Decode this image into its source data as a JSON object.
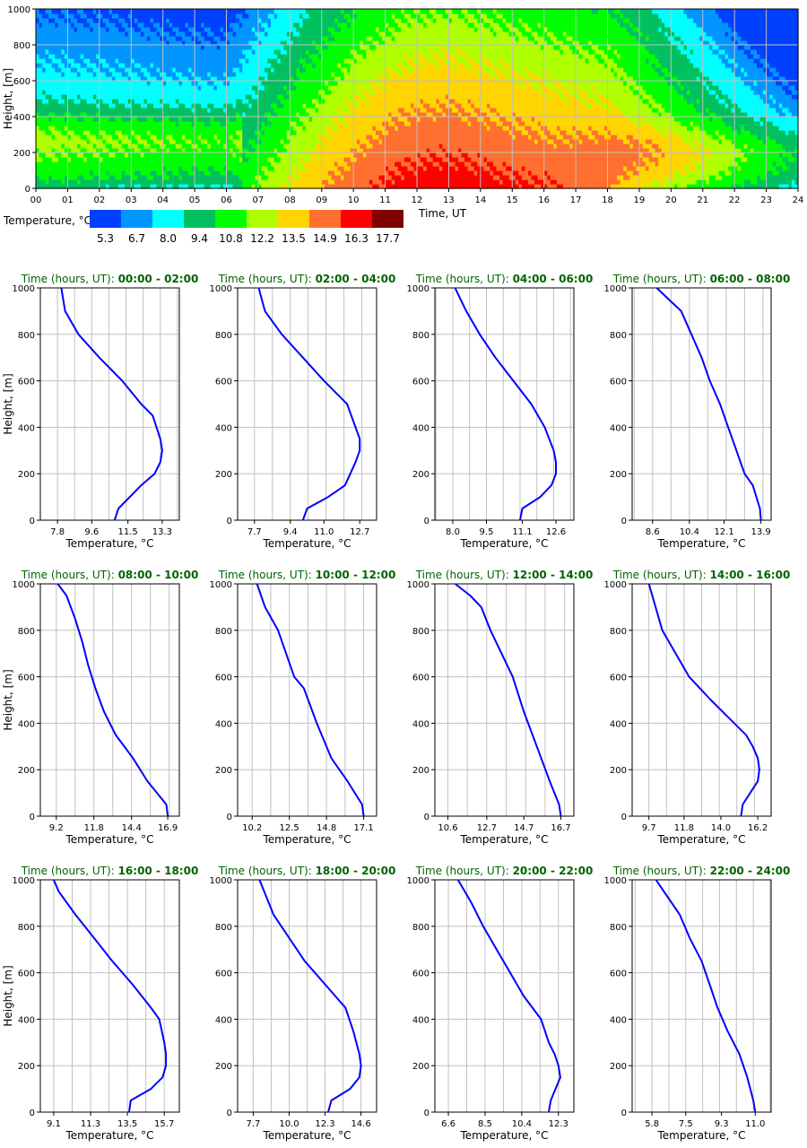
{
  "chart_data": [
    {
      "type": "heatmap",
      "title": "",
      "xlabel": "Time, UT",
      "ylabel": "Height, [m]",
      "x_ticks": [
        "00",
        "01",
        "02",
        "03",
        "04",
        "05",
        "06",
        "07",
        "08",
        "09",
        "10",
        "11",
        "12",
        "13",
        "14",
        "15",
        "16",
        "17",
        "18",
        "19",
        "20",
        "21",
        "22",
        "23",
        "24"
      ],
      "y_ticks": [
        "0",
        "200",
        "400",
        "600",
        "800",
        "1000"
      ],
      "xlim": [
        0,
        24
      ],
      "ylim": [
        0,
        1000
      ],
      "grid": true,
      "colorbar": {
        "label": "Temperature, °C",
        "levels": [
          "5.3",
          "6.7",
          "8.0",
          "9.4",
          "10.8",
          "12.2",
          "13.5",
          "14.9",
          "16.3",
          "17.7"
        ],
        "colors": [
          "#0040ff",
          "#0095ff",
          "#00ffff",
          "#00c060",
          "#00ff00",
          "#b0ff00",
          "#ffd500",
          "#ff7030",
          "#ff0000",
          "#800000"
        ]
      }
    },
    {
      "type": "line",
      "title_prefix": "Time (hours, UT): ",
      "title_range": "00:00 - 02:00",
      "xlabel": "Temperature, °C",
      "ylabel": "Height, [m]",
      "xlim": [
        6.9,
        14.2
      ],
      "x_ticks": [
        "7.8",
        "9.6",
        "11.5",
        "13.3"
      ],
      "y_ticks": [
        "0",
        "200",
        "400",
        "600",
        "800",
        "1000"
      ],
      "series": [
        {
          "name": "profile",
          "color": "#0000ff",
          "x": [
            10.8,
            11.0,
            12.2,
            12.9,
            13.2,
            13.3,
            13.2,
            12.8,
            12.2,
            11.2,
            10.0,
            8.9,
            8.2,
            8.0
          ],
          "y": [
            0,
            50,
            150,
            200,
            250,
            300,
            350,
            450,
            500,
            600,
            700,
            800,
            900,
            1000
          ]
        }
      ]
    },
    {
      "type": "line",
      "title_prefix": "Time (hours, UT): ",
      "title_range": "02:00 - 04:00",
      "xlabel": "Temperature, °C",
      "ylabel": "Height, [m]",
      "xlim": [
        6.9,
        13.5
      ],
      "x_ticks": [
        "7.7",
        "9.4",
        "11.0",
        "12.7"
      ],
      "y_ticks": [
        "0",
        "200",
        "400",
        "600",
        "800",
        "1000"
      ],
      "series": [
        {
          "name": "profile",
          "color": "#0000ff",
          "x": [
            10.0,
            10.2,
            11.2,
            12.0,
            12.5,
            12.7,
            12.7,
            12.5,
            12.1,
            11.0,
            10.0,
            9.0,
            8.2,
            7.9
          ],
          "y": [
            0,
            50,
            100,
            150,
            250,
            300,
            350,
            400,
            500,
            600,
            700,
            800,
            900,
            1000
          ]
        }
      ]
    },
    {
      "type": "line",
      "title_prefix": "Time (hours, UT): ",
      "title_range": "04:00 - 06:00",
      "xlabel": "Temperature, °C",
      "ylabel": "Height, [m]",
      "xlim": [
        7.2,
        13.4
      ],
      "x_ticks": [
        "8.0",
        "9.5",
        "11.1",
        "12.6"
      ],
      "y_ticks": [
        "0",
        "200",
        "400",
        "600",
        "800",
        "1000"
      ],
      "series": [
        {
          "name": "profile",
          "color": "#0000ff",
          "x": [
            11.0,
            11.1,
            11.9,
            12.4,
            12.6,
            12.6,
            12.5,
            12.1,
            11.5,
            10.7,
            9.9,
            9.2,
            8.6,
            8.1
          ],
          "y": [
            0,
            50,
            100,
            150,
            200,
            250,
            300,
            400,
            500,
            600,
            700,
            800,
            900,
            1000
          ]
        }
      ]
    },
    {
      "type": "line",
      "title_prefix": "Time (hours, UT): ",
      "title_range": "06:00 - 08:00",
      "xlabel": "Temperature, °C",
      "ylabel": "Height, [m]",
      "xlim": [
        7.6,
        14.4
      ],
      "x_ticks": [
        "8.6",
        "10.4",
        "12.1",
        "13.9"
      ],
      "y_ticks": [
        "0",
        "200",
        "400",
        "600",
        "800",
        "1000"
      ],
      "series": [
        {
          "name": "profile",
          "color": "#0000ff",
          "x": [
            13.9,
            13.85,
            13.5,
            13.1,
            12.7,
            12.3,
            11.9,
            11.4,
            11.0,
            10.5,
            10.0,
            9.4,
            8.8
          ],
          "y": [
            0,
            50,
            150,
            200,
            300,
            400,
            500,
            600,
            700,
            800,
            900,
            950,
            1000
          ]
        }
      ]
    },
    {
      "type": "line",
      "title_prefix": "Time (hours, UT): ",
      "title_range": "08:00 - 10:00",
      "xlabel": "Temperature, °C",
      "ylabel": "Height, [m]",
      "xlim": [
        8.1,
        17.7
      ],
      "x_ticks": [
        "9.2",
        "11.8",
        "14.4",
        "16.9"
      ],
      "y_ticks": [
        "0",
        "200",
        "400",
        "600",
        "800",
        "1000"
      ],
      "series": [
        {
          "name": "profile",
          "color": "#0000ff",
          "x": [
            16.9,
            16.8,
            15.5,
            14.5,
            13.3,
            12.5,
            11.9,
            11.4,
            11.0,
            10.5,
            9.9,
            9.3
          ],
          "y": [
            0,
            50,
            150,
            250,
            350,
            450,
            550,
            650,
            750,
            850,
            950,
            1000
          ]
        }
      ]
    },
    {
      "type": "line",
      "title_prefix": "Time (hours, UT): ",
      "title_range": "10:00 - 12:00",
      "xlabel": "Temperature, °C",
      "ylabel": "Height, [m]",
      "xlim": [
        9.3,
        17.9
      ],
      "x_ticks": [
        "10.2",
        "12.5",
        "14.8",
        "17.1"
      ],
      "y_ticks": [
        "0",
        "200",
        "400",
        "600",
        "800",
        "1000"
      ],
      "series": [
        {
          "name": "profile",
          "color": "#0000ff",
          "x": [
            17.1,
            17.0,
            16.1,
            15.1,
            14.2,
            13.4,
            12.8,
            12.3,
            11.8,
            11.0,
            10.5
          ],
          "y": [
            0,
            50,
            150,
            250,
            400,
            550,
            600,
            700,
            800,
            900,
            1000
          ]
        }
      ]
    },
    {
      "type": "line",
      "title_prefix": "Time (hours, UT): ",
      "title_range": "12:00 - 14:00",
      "xlabel": "Temperature, °C",
      "ylabel": "Height, [m]",
      "xlim": [
        9.9,
        17.4
      ],
      "x_ticks": [
        "10.6",
        "12.7",
        "14.7",
        "16.7"
      ],
      "y_ticks": [
        "0",
        "200",
        "400",
        "600",
        "800",
        "1000"
      ],
      "series": [
        {
          "name": "profile",
          "color": "#0000ff",
          "x": [
            16.7,
            16.6,
            16.1,
            15.4,
            14.7,
            14.1,
            13.5,
            12.9,
            12.4,
            11.8,
            11.0
          ],
          "y": [
            0,
            50,
            150,
            300,
            450,
            600,
            700,
            800,
            900,
            950,
            1000
          ]
        }
      ]
    },
    {
      "type": "line",
      "title_prefix": "Time (hours, UT): ",
      "title_range": "14:00 - 16:00",
      "xlabel": "Temperature, °C",
      "ylabel": "Height, [m]",
      "xlim": [
        8.7,
        17.0
      ],
      "x_ticks": [
        "9.7",
        "11.8",
        "14.0",
        "16.2"
      ],
      "y_ticks": [
        "0",
        "200",
        "400",
        "600",
        "800",
        "1000"
      ],
      "series": [
        {
          "name": "profile",
          "color": "#0000ff",
          "x": [
            15.2,
            15.3,
            16.2,
            16.3,
            16.2,
            15.9,
            15.5,
            14.8,
            13.4,
            12.1,
            11.3,
            10.5,
            9.7
          ],
          "y": [
            0,
            50,
            150,
            200,
            250,
            300,
            350,
            400,
            500,
            600,
            700,
            800,
            1000
          ]
        }
      ]
    },
    {
      "type": "line",
      "title_prefix": "Time (hours, UT): ",
      "title_range": "16:00 - 18:00",
      "xlabel": "Temperature, °C",
      "ylabel": "Height, [m]",
      "xlim": [
        8.3,
        16.6
      ],
      "x_ticks": [
        "9.1",
        "11.3",
        "13.5",
        "15.7"
      ],
      "y_ticks": [
        "0",
        "200",
        "400",
        "600",
        "800",
        "1000"
      ],
      "series": [
        {
          "name": "profile",
          "color": "#0000ff",
          "x": [
            13.6,
            13.7,
            14.9,
            15.6,
            15.8,
            15.8,
            15.7,
            15.4,
            14.9,
            13.8,
            12.6,
            11.5,
            10.4,
            9.4,
            9.1
          ],
          "y": [
            0,
            50,
            100,
            150,
            200,
            250,
            300,
            400,
            450,
            550,
            650,
            750,
            850,
            950,
            1000
          ]
        }
      ]
    },
    {
      "type": "line",
      "title_prefix": "Time (hours, UT): ",
      "title_range": "18:00 - 20:00",
      "xlabel": "Temperature, °C",
      "ylabel": "Height, [m]",
      "xlim": [
        6.7,
        15.6
      ],
      "x_ticks": [
        "7.7",
        "10.0",
        "12.3",
        "14.6"
      ],
      "y_ticks": [
        "0",
        "200",
        "400",
        "600",
        "800",
        "1000"
      ],
      "series": [
        {
          "name": "profile",
          "color": "#0000ff",
          "x": [
            12.5,
            12.7,
            13.9,
            14.5,
            14.6,
            14.5,
            14.1,
            13.6,
            12.3,
            11.0,
            10.0,
            9.0,
            8.1
          ],
          "y": [
            0,
            50,
            100,
            150,
            200,
            250,
            350,
            450,
            550,
            650,
            750,
            850,
            1000
          ]
        }
      ]
    },
    {
      "type": "line",
      "title_prefix": "Time (hours, UT): ",
      "title_range": "20:00 - 22:00",
      "xlabel": "Temperature, °C",
      "ylabel": "Height, [m]",
      "xlim": [
        5.9,
        13.1
      ],
      "x_ticks": [
        "6.6",
        "8.5",
        "10.4",
        "12.3"
      ],
      "y_ticks": [
        "0",
        "200",
        "400",
        "600",
        "800",
        "1000"
      ],
      "series": [
        {
          "name": "profile",
          "color": "#0000ff",
          "x": [
            11.8,
            11.9,
            12.4,
            12.3,
            12.1,
            11.8,
            11.4,
            10.5,
            9.8,
            9.1,
            8.4,
            7.8,
            7.1
          ],
          "y": [
            0,
            50,
            150,
            200,
            250,
            300,
            400,
            500,
            600,
            700,
            800,
            900,
            1000
          ]
        }
      ]
    },
    {
      "type": "line",
      "title_prefix": "Time (hours, UT): ",
      "title_range": "22:00 - 24:00",
      "xlabel": "Temperature, °C",
      "ylabel": "Height, [m]",
      "xlim": [
        4.8,
        11.8
      ],
      "x_ticks": [
        "5.8",
        "7.5",
        "9.3",
        "11.0"
      ],
      "y_ticks": [
        "0",
        "200",
        "400",
        "600",
        "800",
        "1000"
      ],
      "series": [
        {
          "name": "profile",
          "color": "#0000ff",
          "x": [
            11.0,
            10.9,
            10.6,
            10.2,
            9.6,
            9.1,
            8.7,
            8.3,
            7.7,
            7.2,
            6.8,
            6.4,
            6.0
          ],
          "y": [
            0,
            50,
            150,
            250,
            350,
            450,
            550,
            650,
            750,
            850,
            900,
            950,
            1000
          ]
        }
      ]
    }
  ]
}
